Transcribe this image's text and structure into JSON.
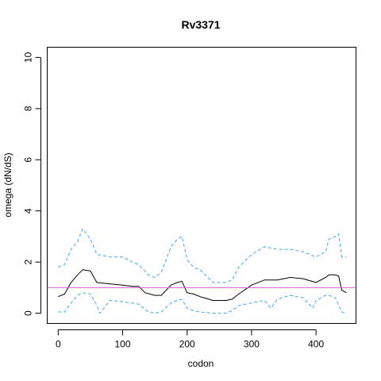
{
  "chart_data": {
    "type": "line",
    "title": "Rv3371",
    "xlabel": "codon",
    "ylabel": "omega (dN/dS)",
    "xlim": [
      -17,
      462
    ],
    "ylim": [
      -0.4,
      10.4
    ],
    "xticks": [
      0,
      100,
      200,
      300,
      400
    ],
    "yticks": [
      0,
      2,
      4,
      6,
      8,
      10
    ],
    "reference_line": {
      "y": 1,
      "color": "#cc66cc"
    },
    "grid": false,
    "legend": "none",
    "series": [
      {
        "role": "upper",
        "color": "#3fa9e0",
        "style": "dashed",
        "x": [
          0,
          10,
          20,
          30,
          38,
          50,
          60,
          80,
          100,
          115,
          125,
          140,
          150,
          160,
          175,
          185,
          192,
          200,
          210,
          220,
          240,
          260,
          270,
          280,
          300,
          320,
          340,
          360,
          380,
          400,
          415,
          420,
          430,
          435,
          440,
          447
        ],
        "y": [
          1.8,
          1.9,
          2.5,
          2.8,
          3.3,
          2.9,
          2.3,
          2.2,
          2.2,
          2.0,
          1.9,
          1.5,
          1.4,
          1.6,
          2.6,
          2.9,
          3.0,
          2.1,
          1.8,
          1.7,
          1.2,
          1.2,
          1.3,
          1.8,
          2.3,
          2.6,
          2.5,
          2.5,
          2.4,
          2.2,
          2.4,
          2.9,
          3.0,
          3.1,
          2.2,
          2.2
        ]
      },
      {
        "role": "estimate",
        "color": "#000000",
        "style": "solid",
        "x": [
          0,
          10,
          20,
          30,
          38,
          50,
          60,
          80,
          100,
          115,
          125,
          135,
          150,
          160,
          175,
          185,
          192,
          200,
          210,
          220,
          240,
          260,
          270,
          280,
          300,
          320,
          340,
          360,
          380,
          400,
          415,
          420,
          430,
          435,
          440,
          447
        ],
        "y": [
          0.65,
          0.75,
          1.2,
          1.5,
          1.7,
          1.65,
          1.2,
          1.15,
          1.1,
          1.05,
          1.05,
          0.8,
          0.7,
          0.7,
          1.1,
          1.2,
          1.25,
          0.8,
          0.75,
          0.65,
          0.5,
          0.5,
          0.55,
          0.75,
          1.1,
          1.3,
          1.3,
          1.4,
          1.35,
          1.2,
          1.4,
          1.5,
          1.5,
          1.45,
          0.9,
          0.8
        ]
      },
      {
        "role": "lower",
        "color": "#3fa9e0",
        "style": "dashed",
        "x": [
          0,
          10,
          20,
          30,
          38,
          50,
          60,
          65,
          80,
          100,
          115,
          125,
          140,
          150,
          160,
          175,
          185,
          192,
          200,
          210,
          220,
          240,
          260,
          270,
          280,
          300,
          320,
          330,
          340,
          360,
          380,
          395,
          400,
          415,
          420,
          430,
          440,
          447
        ],
        "y": [
          0.05,
          0.05,
          0.4,
          0.7,
          0.8,
          0.75,
          0.3,
          0.0,
          0.5,
          0.45,
          0.4,
          0.35,
          0.05,
          0.0,
          0.05,
          0.4,
          0.5,
          0.55,
          0.2,
          0.1,
          0.05,
          0.0,
          0.0,
          0.1,
          0.3,
          0.4,
          0.5,
          0.2,
          0.55,
          0.7,
          0.6,
          0.2,
          0.5,
          0.7,
          0.7,
          0.6,
          0.05,
          0.0
        ]
      }
    ]
  }
}
